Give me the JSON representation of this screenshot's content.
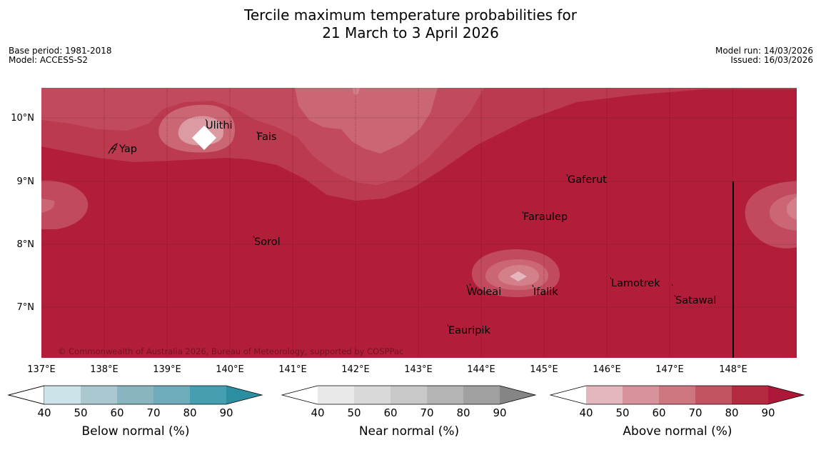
{
  "title": {
    "line1": "Tercile maximum temperature probabilities for",
    "line2": "21 March to 3 April 2026"
  },
  "meta": {
    "base_period": "Base period: 1981-2018",
    "model": "Model: ACCESS-S2",
    "model_run": "Model run: 14/03/2026",
    "issued": "Issued: 16/03/2026"
  },
  "copyright": "© Commonwealth of Australia 2026, Bureau of Meteorology, supported by COSPPac",
  "axes": {
    "lat_labels": [
      "10°N",
      "9°N",
      "8°N",
      "7°N"
    ],
    "lon_labels": [
      "137°E",
      "138°E",
      "139°E",
      "140°E",
      "141°E",
      "142°E",
      "143°E",
      "144°E",
      "145°E",
      "146°E",
      "147°E",
      "148°E"
    ]
  },
  "places": {
    "ulithi": "Ulithi",
    "fais": "Fais",
    "yap": "Yap",
    "gaferut": "Gaferut",
    "faraulep": "Faraulep",
    "sorol": "Sorol",
    "lamotrek": "Lamotrek",
    "woleai": "Woleai",
    "ifalik": "Ifalik",
    "satawal": "Satawal",
    "eauripik": "Eauripik"
  },
  "colorbars": {
    "below": {
      "title": "Below normal (%)",
      "ticks": [
        "40",
        "50",
        "60",
        "70",
        "80",
        "90"
      ],
      "colors": [
        "#ffffff",
        "#cde3ea",
        "#a9c8cf",
        "#89b5c1",
        "#6eacbc",
        "#459fb0",
        "#2b8ea1"
      ]
    },
    "near": {
      "title": "Near normal (%)",
      "ticks": [
        "40",
        "50",
        "60",
        "70",
        "80",
        "90"
      ],
      "colors": [
        "#ffffff",
        "#e9e9e9",
        "#d9d9d9",
        "#c8c8c8",
        "#b4b4b4",
        "#a0a0a0",
        "#858585"
      ]
    },
    "above": {
      "title": "Above normal (%)",
      "ticks": [
        "40",
        "50",
        "60",
        "70",
        "80",
        "90"
      ],
      "colors": [
        "#ffffff",
        "#e3b7bd",
        "#d8929c",
        "#cd7680",
        "#c25462",
        "#b5293f",
        "#ad1838"
      ]
    }
  }
}
